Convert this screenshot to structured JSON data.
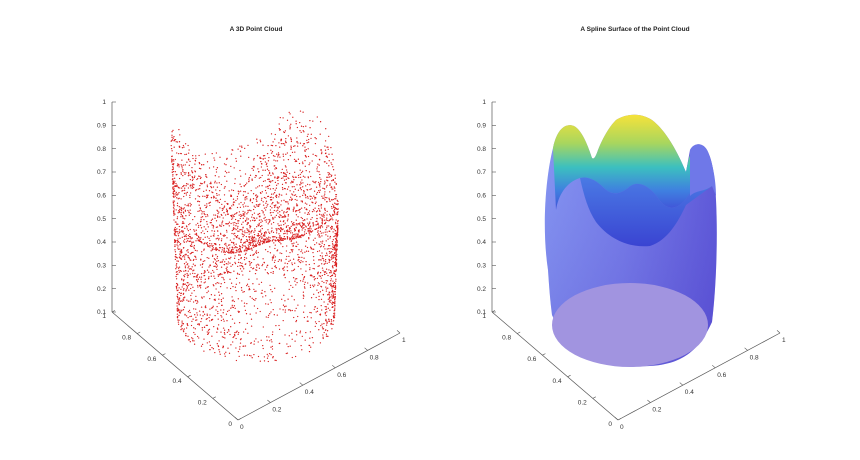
{
  "chart_data": [
    {
      "type": "scatter",
      "title": "A 3D Point Cloud",
      "xlabel": "",
      "ylabel": "",
      "zlabel": "",
      "xlim": [
        0,
        1
      ],
      "ylim": [
        0,
        1
      ],
      "zlim": [
        0.1,
        1
      ],
      "x_ticks": [
        "0",
        "0.2",
        "0.4",
        "0.6",
        "0.8",
        "1"
      ],
      "y_ticks": [
        "0",
        "0.2",
        "0.4",
        "0.6",
        "0.8",
        "1"
      ],
      "z_ticks": [
        "0.1",
        "0.2",
        "0.3",
        "0.4",
        "0.5",
        "0.6",
        "0.7",
        "0.8",
        "0.9",
        "1"
      ],
      "marker_color": "#d92020",
      "grid": false
    },
    {
      "type": "surface",
      "title": "A Spline Surface of the Point Cloud",
      "xlabel": "",
      "ylabel": "",
      "zlabel": "",
      "xlim": [
        0,
        1
      ],
      "ylim": [
        0,
        1
      ],
      "zlim": [
        0.1,
        1
      ],
      "x_ticks": [
        "0",
        "0.2",
        "0.4",
        "0.6",
        "0.8",
        "1"
      ],
      "y_ticks": [
        "0",
        "0.2",
        "0.4",
        "0.6",
        "0.8",
        "1"
      ],
      "z_ticks": [
        "0.1",
        "0.2",
        "0.3",
        "0.4",
        "0.5",
        "0.6",
        "0.7",
        "0.8",
        "0.9",
        "1"
      ],
      "colormap": [
        "#4a3fd0",
        "#5a74e8",
        "#38b6c8",
        "#8fd06a",
        "#f2d93a"
      ],
      "base_color": "#a194e0",
      "grid": false
    }
  ]
}
